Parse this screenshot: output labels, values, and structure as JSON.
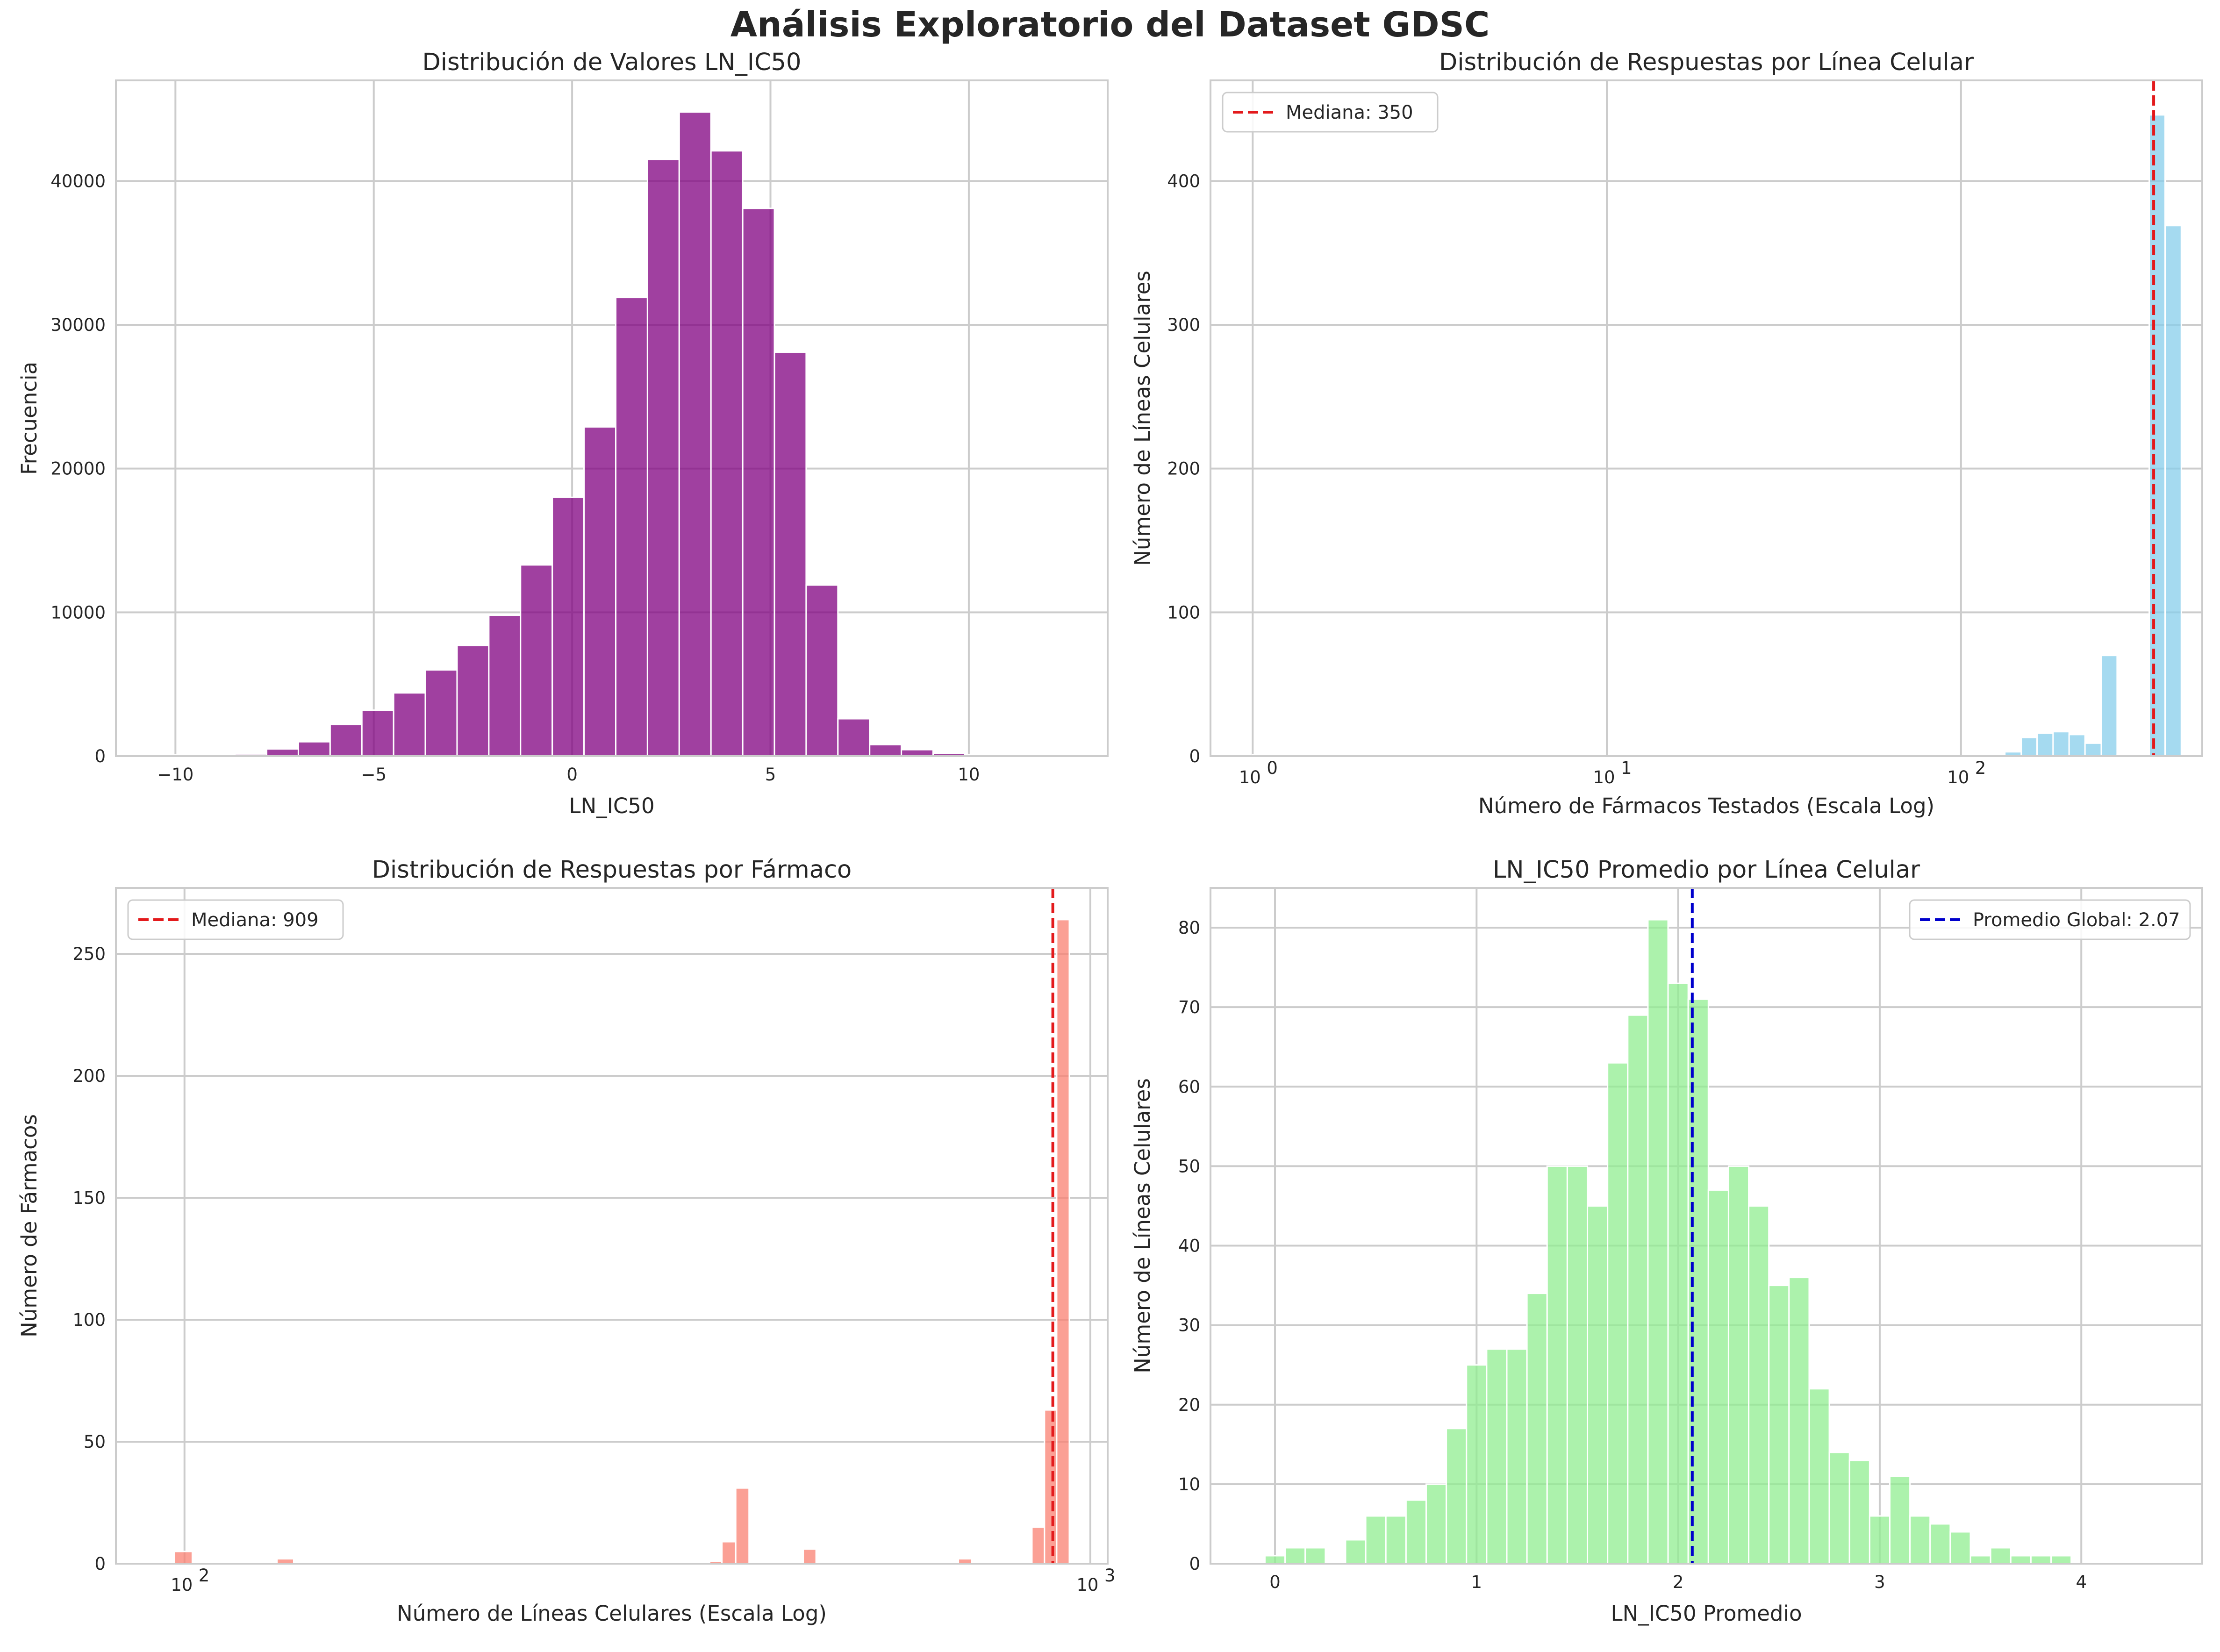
{
  "figure": {
    "title": "Análisis Exploratorio del Dataset GDSC"
  },
  "chart_data": [
    {
      "type": "bar",
      "title": "Distribución de Valores LN_IC50",
      "xlabel": "LN_IC50",
      "ylabel": "Frecuencia",
      "xscale": "linear",
      "xlim": [
        -11.5,
        13.5
      ],
      "ylim": [
        0,
        47000
      ],
      "xticks": [
        -10,
        -5,
        0,
        5,
        10
      ],
      "yticks": [
        0,
        10000,
        20000,
        30000,
        40000
      ],
      "grid": true,
      "color": "#800080",
      "bins": [
        [
          -10.1,
          -9.3,
          80
        ],
        [
          -9.3,
          -8.5,
          120
        ],
        [
          -8.5,
          -7.7,
          150
        ],
        [
          -7.7,
          -6.9,
          500
        ],
        [
          -6.9,
          -6.1,
          1000
        ],
        [
          -6.1,
          -5.3,
          2200
        ],
        [
          -5.3,
          -4.5,
          3200
        ],
        [
          -4.5,
          -3.7,
          4400
        ],
        [
          -3.7,
          -2.9,
          6000
        ],
        [
          -2.9,
          -2.1,
          7700
        ],
        [
          -2.1,
          -1.3,
          9800
        ],
        [
          -1.3,
          -0.5,
          13300
        ],
        [
          -0.5,
          0.3,
          18000
        ],
        [
          0.3,
          1.1,
          22900
        ],
        [
          1.1,
          1.9,
          31900
        ],
        [
          1.9,
          2.7,
          41500
        ],
        [
          2.7,
          3.5,
          44800
        ],
        [
          3.5,
          4.3,
          42100
        ],
        [
          4.3,
          5.1,
          38100
        ],
        [
          5.1,
          5.9,
          28100
        ],
        [
          5.9,
          6.7,
          11900
        ],
        [
          6.7,
          7.5,
          2600
        ],
        [
          7.5,
          8.3,
          800
        ],
        [
          8.3,
          9.1,
          450
        ],
        [
          9.1,
          9.9,
          200
        ],
        [
          9.9,
          10.7,
          80
        ],
        [
          10.7,
          11.5,
          40
        ]
      ]
    },
    {
      "type": "bar",
      "title": "Distribución de Respuestas por Línea Celular",
      "xlabel": "Número de Fármacos Testados (Escala Log)",
      "ylabel": "Número de Líneas Celulares",
      "xscale": "log",
      "xlim": [
        0.76,
        480
      ],
      "ylim": [
        0,
        470
      ],
      "xticks": [
        1,
        10,
        100
      ],
      "xticklabels": [
        "10",
        "10",
        "10"
      ],
      "xtickexps": [
        "0",
        "1",
        "2"
      ],
      "yticks": [
        0,
        100,
        200,
        300,
        400
      ],
      "grid": true,
      "color": "#87ceeb",
      "median_line": {
        "value": 350,
        "label": "Mediana: 350",
        "color": "#e31a1c"
      },
      "legend": "top-left",
      "bins": [
        [
          1.0,
          1.11,
          1
        ],
        [
          22.0,
          24.4,
          1
        ],
        [
          37.5,
          41.6,
          1
        ],
        [
          120,
          133,
          1
        ],
        [
          133,
          148,
          3
        ],
        [
          148,
          164,
          13
        ],
        [
          164,
          182,
          16
        ],
        [
          182,
          202,
          17
        ],
        [
          202,
          224,
          15
        ],
        [
          224,
          249,
          9
        ],
        [
          249,
          276,
          70
        ],
        [
          276,
          306,
          1
        ],
        [
          306,
          340,
          1
        ],
        [
          340,
          377,
          446
        ],
        [
          377,
          419,
          369
        ]
      ]
    },
    {
      "type": "bar",
      "title": "Distribución de Respuestas por Fármaco",
      "xlabel": "Número de Líneas Celulares (Escala Log)",
      "ylabel": "Número de Fármacos",
      "xscale": "log",
      "xlim": [
        84,
        1045
      ],
      "ylim": [
        0,
        277
      ],
      "xticks": [
        100,
        1000
      ],
      "xticklabels": [
        "10",
        "10"
      ],
      "xtickexps": [
        "2",
        "3"
      ],
      "yticks": [
        0,
        50,
        100,
        150,
        200,
        250
      ],
      "grid": true,
      "color": "#fa8072",
      "median_line": {
        "value": 909,
        "label": "Mediana: 909",
        "color": "#e31a1c"
      },
      "legend": "top-left",
      "bins": [
        [
          97.5,
          102.0,
          5
        ],
        [
          126.5,
          132.0,
          2
        ],
        [
          380,
          392,
          1
        ],
        [
          392,
          406,
          9
        ],
        [
          406,
          420,
          31
        ],
        [
          482,
          498,
          6
        ],
        [
          715,
          740,
          2
        ],
        [
          862,
          890,
          15
        ],
        [
          890,
          918,
          63
        ],
        [
          918,
          948,
          264
        ]
      ]
    },
    {
      "type": "bar",
      "title": "LN_IC50 Promedio por Línea Celular",
      "xlabel": "LN_IC50 Promedio",
      "ylabel": "Número de Líneas Celulares",
      "xscale": "linear",
      "xlim": [
        -0.32,
        4.6
      ],
      "ylim": [
        0,
        85
      ],
      "xticks": [
        0,
        1,
        2,
        3,
        4
      ],
      "yticks": [
        0,
        10,
        20,
        30,
        40,
        50,
        60,
        70,
        80
      ],
      "grid": true,
      "color": "#90ee90",
      "median_line": {
        "value": 2.07,
        "label": "Promedio Global: 2.07",
        "color": "#0000cc"
      },
      "legend": "top-right",
      "bins": [
        [
          -0.05,
          0.05,
          1
        ],
        [
          0.05,
          0.15,
          2
        ],
        [
          0.15,
          0.25,
          2
        ],
        [
          0.25,
          0.35,
          0
        ],
        [
          0.35,
          0.45,
          3
        ],
        [
          0.45,
          0.55,
          6
        ],
        [
          0.55,
          0.65,
          6
        ],
        [
          0.65,
          0.75,
          8
        ],
        [
          0.75,
          0.85,
          10
        ],
        [
          0.85,
          0.95,
          17
        ],
        [
          0.95,
          1.05,
          25
        ],
        [
          1.05,
          1.15,
          27
        ],
        [
          1.15,
          1.25,
          27
        ],
        [
          1.25,
          1.35,
          34
        ],
        [
          1.35,
          1.45,
          50
        ],
        [
          1.45,
          1.55,
          50
        ],
        [
          1.55,
          1.65,
          45
        ],
        [
          1.65,
          1.75,
          63
        ],
        [
          1.75,
          1.85,
          69
        ],
        [
          1.85,
          1.95,
          81
        ],
        [
          1.95,
          2.05,
          73
        ],
        [
          2.05,
          2.15,
          71
        ],
        [
          2.15,
          2.25,
          47
        ],
        [
          2.25,
          2.35,
          50
        ],
        [
          2.35,
          2.45,
          45
        ],
        [
          2.45,
          2.55,
          35
        ],
        [
          2.55,
          2.65,
          36
        ],
        [
          2.65,
          2.75,
          22
        ],
        [
          2.75,
          2.85,
          14
        ],
        [
          2.85,
          2.95,
          13
        ],
        [
          2.95,
          3.05,
          6
        ],
        [
          3.05,
          3.15,
          11
        ],
        [
          3.15,
          3.25,
          6
        ],
        [
          3.25,
          3.35,
          5
        ],
        [
          3.35,
          3.45,
          4
        ],
        [
          3.45,
          3.55,
          1
        ],
        [
          3.55,
          3.65,
          2
        ],
        [
          3.65,
          3.75,
          1
        ],
        [
          3.75,
          3.85,
          1
        ],
        [
          3.85,
          3.95,
          1
        ]
      ]
    }
  ]
}
